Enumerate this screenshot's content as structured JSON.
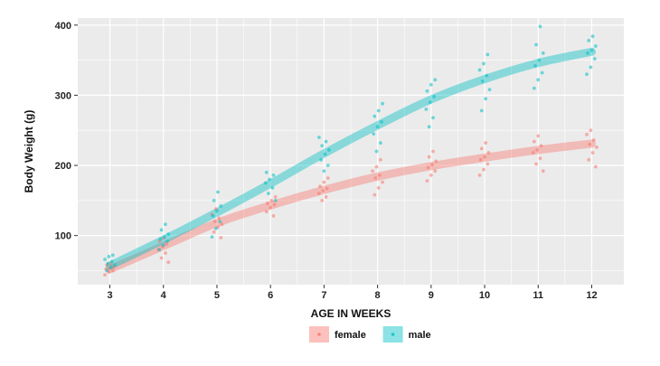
{
  "chart_data": {
    "type": "scatter",
    "title": "",
    "xlabel": "AGE IN WEEKS",
    "ylabel": "Body Weight (g)",
    "xlim": [
      2.4,
      12.6
    ],
    "ylim": [
      30,
      410
    ],
    "x_ticks": [
      3,
      4,
      5,
      6,
      7,
      8,
      9,
      10,
      11,
      12
    ],
    "y_ticks": [
      100,
      200,
      300,
      400
    ],
    "grid": true,
    "legend": "bottom",
    "background": "#ebebeb",
    "gridline_color": "#ffffff",
    "series": [
      {
        "name": "female",
        "color": "#f8766d",
        "smooth": [
          [
            3,
            52
          ],
          [
            4,
            85
          ],
          [
            5,
            118
          ],
          [
            6,
            143
          ],
          [
            7,
            165
          ],
          [
            8,
            184
          ],
          [
            9,
            199
          ],
          [
            10,
            211
          ],
          [
            11,
            222
          ],
          [
            12,
            231
          ]
        ],
        "points": [
          [
            3,
            44
          ],
          [
            3,
            48
          ],
          [
            3,
            50
          ],
          [
            3,
            52
          ],
          [
            3,
            53
          ],
          [
            3,
            55
          ],
          [
            3,
            58
          ],
          [
            3,
            60
          ],
          [
            4,
            62
          ],
          [
            4,
            68
          ],
          [
            4,
            75
          ],
          [
            4,
            80
          ],
          [
            4,
            84
          ],
          [
            4,
            88
          ],
          [
            4,
            92
          ],
          [
            4,
            96
          ],
          [
            5,
            97
          ],
          [
            5,
            105
          ],
          [
            5,
            112
          ],
          [
            5,
            116
          ],
          [
            5,
            120
          ],
          [
            5,
            125
          ],
          [
            5,
            130
          ],
          [
            5,
            138
          ],
          [
            6,
            128
          ],
          [
            6,
            134
          ],
          [
            6,
            140
          ],
          [
            6,
            144
          ],
          [
            6,
            146
          ],
          [
            6,
            150
          ],
          [
            6,
            155
          ],
          [
            7,
            150
          ],
          [
            7,
            155
          ],
          [
            7,
            160
          ],
          [
            7,
            164
          ],
          [
            7,
            167
          ],
          [
            7,
            170
          ],
          [
            7,
            176
          ],
          [
            7,
            182
          ],
          [
            8,
            158
          ],
          [
            8,
            168
          ],
          [
            8,
            176
          ],
          [
            8,
            182
          ],
          [
            8,
            186
          ],
          [
            8,
            192
          ],
          [
            8,
            198
          ],
          [
            8,
            208
          ],
          [
            9,
            178
          ],
          [
            9,
            186
          ],
          [
            9,
            192
          ],
          [
            9,
            197
          ],
          [
            9,
            201
          ],
          [
            9,
            206
          ],
          [
            9,
            212
          ],
          [
            9,
            220
          ],
          [
            10,
            186
          ],
          [
            10,
            194
          ],
          [
            10,
            202
          ],
          [
            10,
            208
          ],
          [
            10,
            212
          ],
          [
            10,
            218
          ],
          [
            10,
            224
          ],
          [
            10,
            232
          ],
          [
            11,
            192
          ],
          [
            11,
            202
          ],
          [
            11,
            210
          ],
          [
            11,
            218
          ],
          [
            11,
            222
          ],
          [
            11,
            228
          ],
          [
            11,
            234
          ],
          [
            11,
            242
          ],
          [
            12,
            198
          ],
          [
            12,
            208
          ],
          [
            12,
            218
          ],
          [
            12,
            226
          ],
          [
            12,
            230
          ],
          [
            12,
            236
          ],
          [
            12,
            244
          ],
          [
            12,
            250
          ]
        ]
      },
      {
        "name": "male",
        "color": "#00bfc4",
        "smooth": [
          [
            3,
            57
          ],
          [
            4,
            94
          ],
          [
            5,
            133
          ],
          [
            6,
            174
          ],
          [
            7,
            217
          ],
          [
            8,
            257
          ],
          [
            9,
            294
          ],
          [
            10,
            323
          ],
          [
            11,
            346
          ],
          [
            12,
            362
          ]
        ],
        "points": [
          [
            3,
            50
          ],
          [
            3,
            55
          ],
          [
            3,
            58
          ],
          [
            3,
            60
          ],
          [
            3,
            63
          ],
          [
            3,
            66
          ],
          [
            3,
            70
          ],
          [
            3,
            72
          ],
          [
            4,
            80
          ],
          [
            4,
            86
          ],
          [
            4,
            92
          ],
          [
            4,
            95
          ],
          [
            4,
            98
          ],
          [
            4,
            102
          ],
          [
            4,
            108
          ],
          [
            4,
            116
          ],
          [
            5,
            98
          ],
          [
            5,
            110
          ],
          [
            5,
            120
          ],
          [
            5,
            128
          ],
          [
            5,
            135
          ],
          [
            5,
            142
          ],
          [
            5,
            150
          ],
          [
            5,
            162
          ],
          [
            6,
            150
          ],
          [
            6,
            160
          ],
          [
            6,
            168
          ],
          [
            6,
            175
          ],
          [
            6,
            180
          ],
          [
            6,
            186
          ],
          [
            6,
            190
          ],
          [
            7,
            192
          ],
          [
            7,
            200
          ],
          [
            7,
            208
          ],
          [
            7,
            216
          ],
          [
            7,
            222
          ],
          [
            7,
            228
          ],
          [
            7,
            234
          ],
          [
            7,
            240
          ],
          [
            8,
            220
          ],
          [
            8,
            232
          ],
          [
            8,
            245
          ],
          [
            8,
            255
          ],
          [
            8,
            262
          ],
          [
            8,
            270
          ],
          [
            8,
            278
          ],
          [
            8,
            288
          ],
          [
            9,
            255
          ],
          [
            9,
            268
          ],
          [
            9,
            280
          ],
          [
            9,
            290
          ],
          [
            9,
            298
          ],
          [
            9,
            306
          ],
          [
            9,
            315
          ],
          [
            9,
            322
          ],
          [
            10,
            278
          ],
          [
            10,
            295
          ],
          [
            10,
            308
          ],
          [
            10,
            320
          ],
          [
            10,
            328
          ],
          [
            10,
            336
          ],
          [
            10,
            345
          ],
          [
            10,
            358
          ],
          [
            11,
            310
          ],
          [
            11,
            322
          ],
          [
            11,
            332
          ],
          [
            11,
            342
          ],
          [
            11,
            350
          ],
          [
            11,
            360
          ],
          [
            11,
            372
          ],
          [
            11,
            398
          ],
          [
            12,
            330
          ],
          [
            12,
            340
          ],
          [
            12,
            352
          ],
          [
            12,
            360
          ],
          [
            12,
            364
          ],
          [
            12,
            370
          ],
          [
            12,
            378
          ],
          [
            12,
            384
          ]
        ]
      }
    ]
  }
}
